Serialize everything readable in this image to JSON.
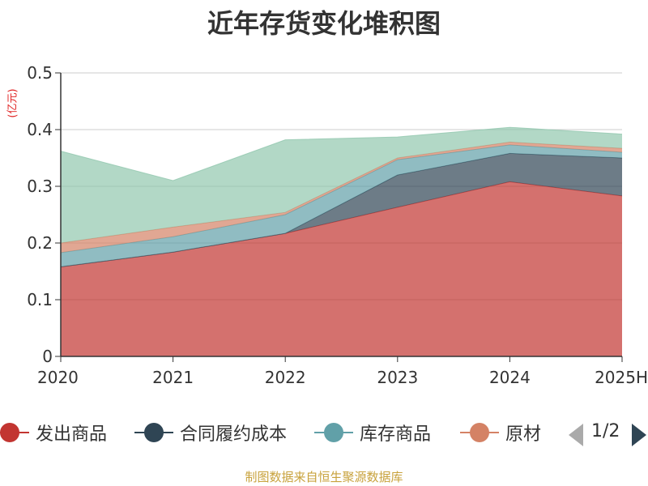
{
  "chart_data": {
    "type": "area",
    "stacked": true,
    "title": "近年存货变化堆积图",
    "unit_label": "(亿元)",
    "unit_color": "#e02020",
    "categories": [
      "2020",
      "2021",
      "2022",
      "2023",
      "2024",
      "2025H"
    ],
    "ylim": [
      0,
      0.5
    ],
    "yticks": [
      "0",
      "0.1",
      "0.2",
      "0.3",
      "0.4",
      "0.5"
    ],
    "grid": true,
    "legend_position": "bottom",
    "series": [
      {
        "name": "发出商品",
        "color": "#c23531",
        "values": [
          0.158,
          0.184,
          0.217,
          0.263,
          0.308,
          0.283
        ]
      },
      {
        "name": "合同履约成本",
        "color": "#2f4554",
        "values": [
          0.0,
          0.0,
          0.0,
          0.057,
          0.05,
          0.067
        ]
      },
      {
        "name": "库存商品",
        "color": "#61a0a8",
        "values": [
          0.025,
          0.027,
          0.033,
          0.027,
          0.015,
          0.01
        ]
      },
      {
        "name": "原材料",
        "color": "#d48265",
        "values": [
          0.017,
          0.017,
          0.004,
          0.003,
          0.005,
          0.007
        ]
      },
      {
        "name": "",
        "color": "#91c7ae",
        "values": [
          0.162,
          0.082,
          0.128,
          0.037,
          0.026,
          0.025
        ]
      }
    ]
  },
  "legend": {
    "items": [
      "发出商品",
      "合同履约成本",
      "库存商品",
      "原材"
    ],
    "page_indicator": "1/2"
  },
  "source_note": "制图数据来自恒生聚源数据库"
}
